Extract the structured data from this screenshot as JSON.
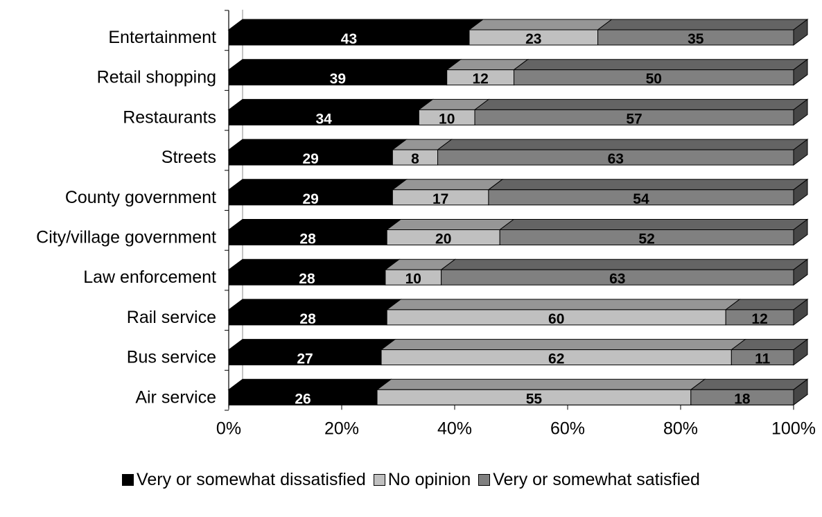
{
  "chart_data": {
    "type": "bar",
    "orientation": "horizontal",
    "stacked": "percent",
    "style": "3d",
    "categories": [
      "Entertainment",
      "Retail shopping",
      "Restaurants",
      "Streets",
      "County government",
      "City/village government",
      "Law enforcement",
      "Rail service",
      "Bus service",
      "Air service"
    ],
    "series": [
      {
        "name": "Very or somewhat dissatisfied",
        "color": "#000000",
        "label_color": "#ffffff",
        "values": [
          43,
          39,
          34,
          29,
          29,
          28,
          28,
          28,
          27,
          26
        ]
      },
      {
        "name": "No opinion",
        "color": "#c0c0c0",
        "label_color": "#000000",
        "values": [
          23,
          12,
          10,
          8,
          17,
          20,
          10,
          60,
          62,
          55
        ]
      },
      {
        "name": "Very or somewhat satisfied",
        "color": "#808080",
        "label_color": "#000000",
        "values": [
          35,
          50,
          57,
          63,
          54,
          52,
          63,
          12,
          11,
          18
        ]
      }
    ],
    "xticks": [
      "0%",
      "20%",
      "40%",
      "60%",
      "80%",
      "100%"
    ],
    "xlim": [
      0,
      100
    ],
    "legend_position": "bottom",
    "grid": false
  }
}
